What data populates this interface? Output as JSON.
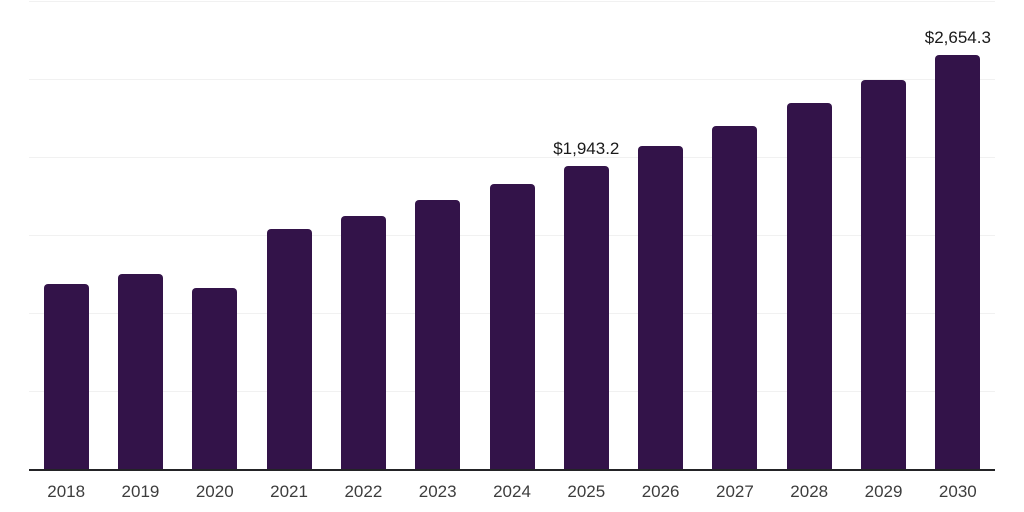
{
  "chart_data": {
    "type": "bar",
    "title": "",
    "xlabel": "",
    "ylabel": "",
    "categories": [
      "2018",
      "2019",
      "2020",
      "2021",
      "2022",
      "2023",
      "2024",
      "2025",
      "2026",
      "2027",
      "2028",
      "2029",
      "2030"
    ],
    "values": [
      1185.9,
      1250.2,
      1158.8,
      1536.4,
      1623.6,
      1723.9,
      1826.6,
      1943.2,
      2068.3,
      2201.6,
      2343.4,
      2494.4,
      2654.3
    ],
    "labeled_points": [
      {
        "category": "2025",
        "label": "$1,943.2"
      },
      {
        "category": "2030",
        "label": "$2,654.3"
      }
    ],
    "ylim": [
      0,
      3000
    ],
    "gridline_step": 500,
    "grid": true,
    "legend": "none",
    "colors": {
      "bar": "#331349",
      "axis": "#232326",
      "gridline": "#f1f1f1",
      "value_label": "#1a1a1a",
      "tick_label": "#3d3d3d",
      "background": "#ffffff"
    }
  }
}
